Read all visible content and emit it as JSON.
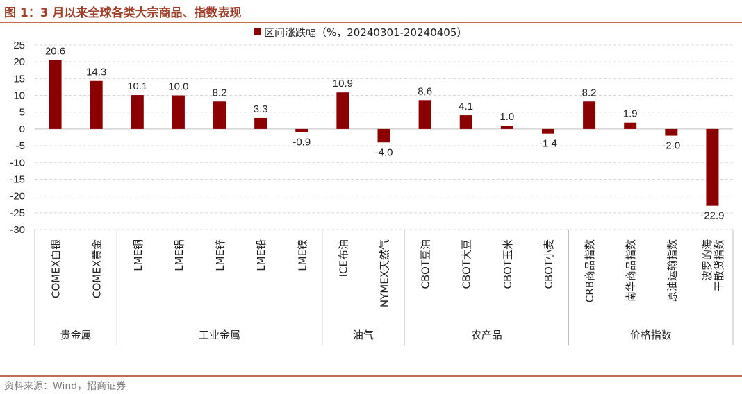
{
  "header": {
    "title": "图 1：3 月以来全球各类大宗商品、指数表现"
  },
  "footer": {
    "source": "资料来源：Wind，招商证券"
  },
  "colors": {
    "bar": "#8b0000",
    "accent": "#c46a4e",
    "grid": "#d9d9d9"
  },
  "chart_data": {
    "type": "bar",
    "title": "",
    "legend": [
      "区间涨跌幅（%，20240301-20240405）"
    ],
    "legend_position": "top-center",
    "ylim": [
      -30,
      25
    ],
    "yticks": [
      25,
      20,
      15,
      10,
      5,
      0,
      -5,
      -10,
      -15,
      -20,
      -25,
      -30
    ],
    "categories": [
      "COMEX白银",
      "COMEX黄金",
      "LME铜",
      "LME铝",
      "LME锌",
      "LME铅",
      "LME镍",
      "ICE布油",
      "NYMEX天然气",
      "CBOT豆油",
      "CBOT大豆",
      "CBOT玉米",
      "CBOT小麦",
      "CRB商品指数",
      "南华商品指数",
      "原油运输指数",
      "波罗的海干散货指数"
    ],
    "category_lines": [
      [
        "COMEX白银"
      ],
      [
        "COMEX黄金"
      ],
      [
        "LME铜"
      ],
      [
        "LME铝"
      ],
      [
        "LME锌"
      ],
      [
        "LME铅"
      ],
      [
        "LME镍"
      ],
      [
        "ICE布油"
      ],
      [
        "NYMEX天然气"
      ],
      [
        "CBOT豆油"
      ],
      [
        "CBOT大豆"
      ],
      [
        "CBOT玉米"
      ],
      [
        "CBOT小麦"
      ],
      [
        "CRB商品指数"
      ],
      [
        "南华商品指数"
      ],
      [
        "原油运输指数"
      ],
      [
        "波罗的海",
        "干散货指数"
      ]
    ],
    "series": [
      {
        "name": "区间涨跌幅（%，20240301-20240405）",
        "values": [
          20.6,
          14.3,
          10.1,
          10.0,
          8.2,
          3.3,
          -0.9,
          10.9,
          -4.0,
          8.6,
          4.1,
          1.0,
          -1.4,
          8.2,
          1.9,
          -2.0,
          -22.9
        ]
      }
    ],
    "value_labels": [
      "20.6",
      "14.3",
      "10.1",
      "10.0",
      "8.2",
      "3.3",
      "-0.9",
      "10.9",
      "-4.0",
      "8.6",
      "4.1",
      "1.0",
      "-1.4",
      "8.2",
      "1.9",
      "-2.0",
      "-22.9"
    ],
    "groups": [
      {
        "label": "贵金属",
        "count": 2
      },
      {
        "label": "工业金属",
        "count": 5
      },
      {
        "label": "油气",
        "count": 2
      },
      {
        "label": "农产品",
        "count": 4
      },
      {
        "label": "价格指数",
        "count": 4
      }
    ],
    "grid": true
  }
}
